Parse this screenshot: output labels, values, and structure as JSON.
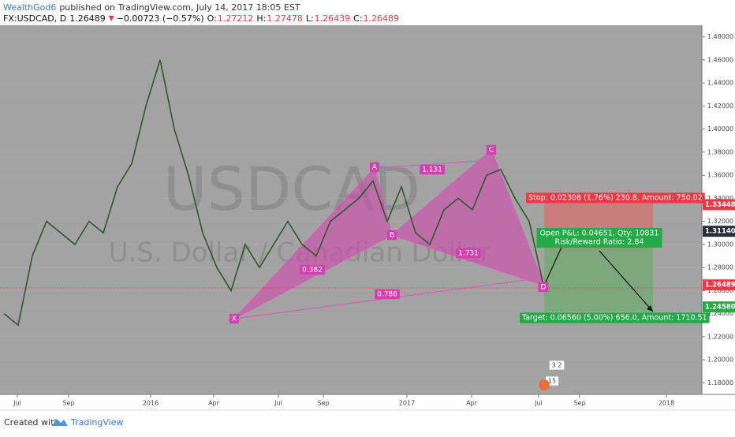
{
  "header": {
    "author": "WealthGod6",
    "published": "published on TradingView.com, July 14, 2017 18:05 EST"
  },
  "symbol": {
    "name": "FX:USDCAD, D",
    "last": "1.26489",
    "change": "−0.00723 (−0.57%)",
    "ohlc": [
      {
        "key": "O:",
        "value": "1.27212"
      },
      {
        "key": "H:",
        "value": "1.27478"
      },
      {
        "key": "L:",
        "value": "1.26439"
      },
      {
        "key": "C:",
        "value": "1.26489"
      }
    ]
  },
  "watermark": {
    "symbol": "USDCAD",
    "description": "U.S. Dollar / Canadian Dollar"
  },
  "price_axis": {
    "range": [
      1.17,
      1.49
    ],
    "ticks": [
      {
        "value": 1.48,
        "label": "1.48000"
      },
      {
        "value": 1.46,
        "label": "1.46000"
      },
      {
        "value": 1.44,
        "label": "1.44000"
      },
      {
        "value": 1.42,
        "label": "1.42000"
      },
      {
        "value": 1.4,
        "label": "1.40000"
      },
      {
        "value": 1.38,
        "label": "1.38000"
      },
      {
        "value": 1.36,
        "label": "1.36000"
      },
      {
        "value": 1.34,
        "label": "1.34000"
      },
      {
        "value": 1.32,
        "label": "1.32000"
      },
      {
        "value": 1.3,
        "label": "1.30000"
      },
      {
        "value": 1.28,
        "label": "1.28000"
      },
      {
        "value": 1.26,
        "label": "1.26000"
      },
      {
        "value": 1.24,
        "label": "1.24000"
      },
      {
        "value": 1.22,
        "label": "1.22000"
      },
      {
        "value": 1.2,
        "label": "1.20000"
      },
      {
        "value": 1.18,
        "label": "1.18000"
      }
    ],
    "tags": [
      {
        "value": 1.33448,
        "label": "1.33448",
        "color": "#f23645"
      },
      {
        "value": 1.3114,
        "label": "1.31140",
        "color": "#2a2e39"
      },
      {
        "value": 1.26489,
        "label": "1.26489",
        "color": "#f23645"
      },
      {
        "value": 1.2458,
        "label": "1.24580",
        "color": "#22ab46"
      }
    ]
  },
  "time_axis": [
    "Jul",
    "Sep",
    "2016",
    "Apr",
    "Jul",
    "Sep",
    "2017",
    "Apr",
    "Jul",
    "Sep",
    "2018"
  ],
  "price": {
    "closes": [
      1.24,
      1.23,
      1.29,
      1.32,
      1.31,
      1.3,
      1.32,
      1.31,
      1.35,
      1.37,
      1.42,
      1.46,
      1.4,
      1.36,
      1.31,
      1.28,
      1.26,
      1.3,
      1.28,
      1.3,
      1.32,
      1.3,
      1.29,
      1.32,
      1.33,
      1.34,
      1.355,
      1.32,
      1.35,
      1.31,
      1.3,
      1.33,
      1.34,
      1.33,
      1.36,
      1.365,
      1.34,
      1.32,
      1.265
    ]
  },
  "pattern": {
    "points": [
      "X",
      "A",
      "B",
      "C",
      "D"
    ],
    "ratios": [
      "0.382",
      "1.131",
      "1.731",
      "0.786"
    ]
  },
  "position": {
    "stop": "Stop: 0.02308 (1.76%) 230.8, Amount: 750.02",
    "pnl": "Open P&L: 0.04651, Qty: 10831",
    "rr": "Risk/Reward Ratio: 2.84",
    "target": "Target: 0.06560 (5.00%) 656.0, Amount: 1710.51"
  },
  "events": [
    "3 2",
    "15"
  ],
  "footer": {
    "created": "Created with",
    "brand": "TradingView"
  }
}
